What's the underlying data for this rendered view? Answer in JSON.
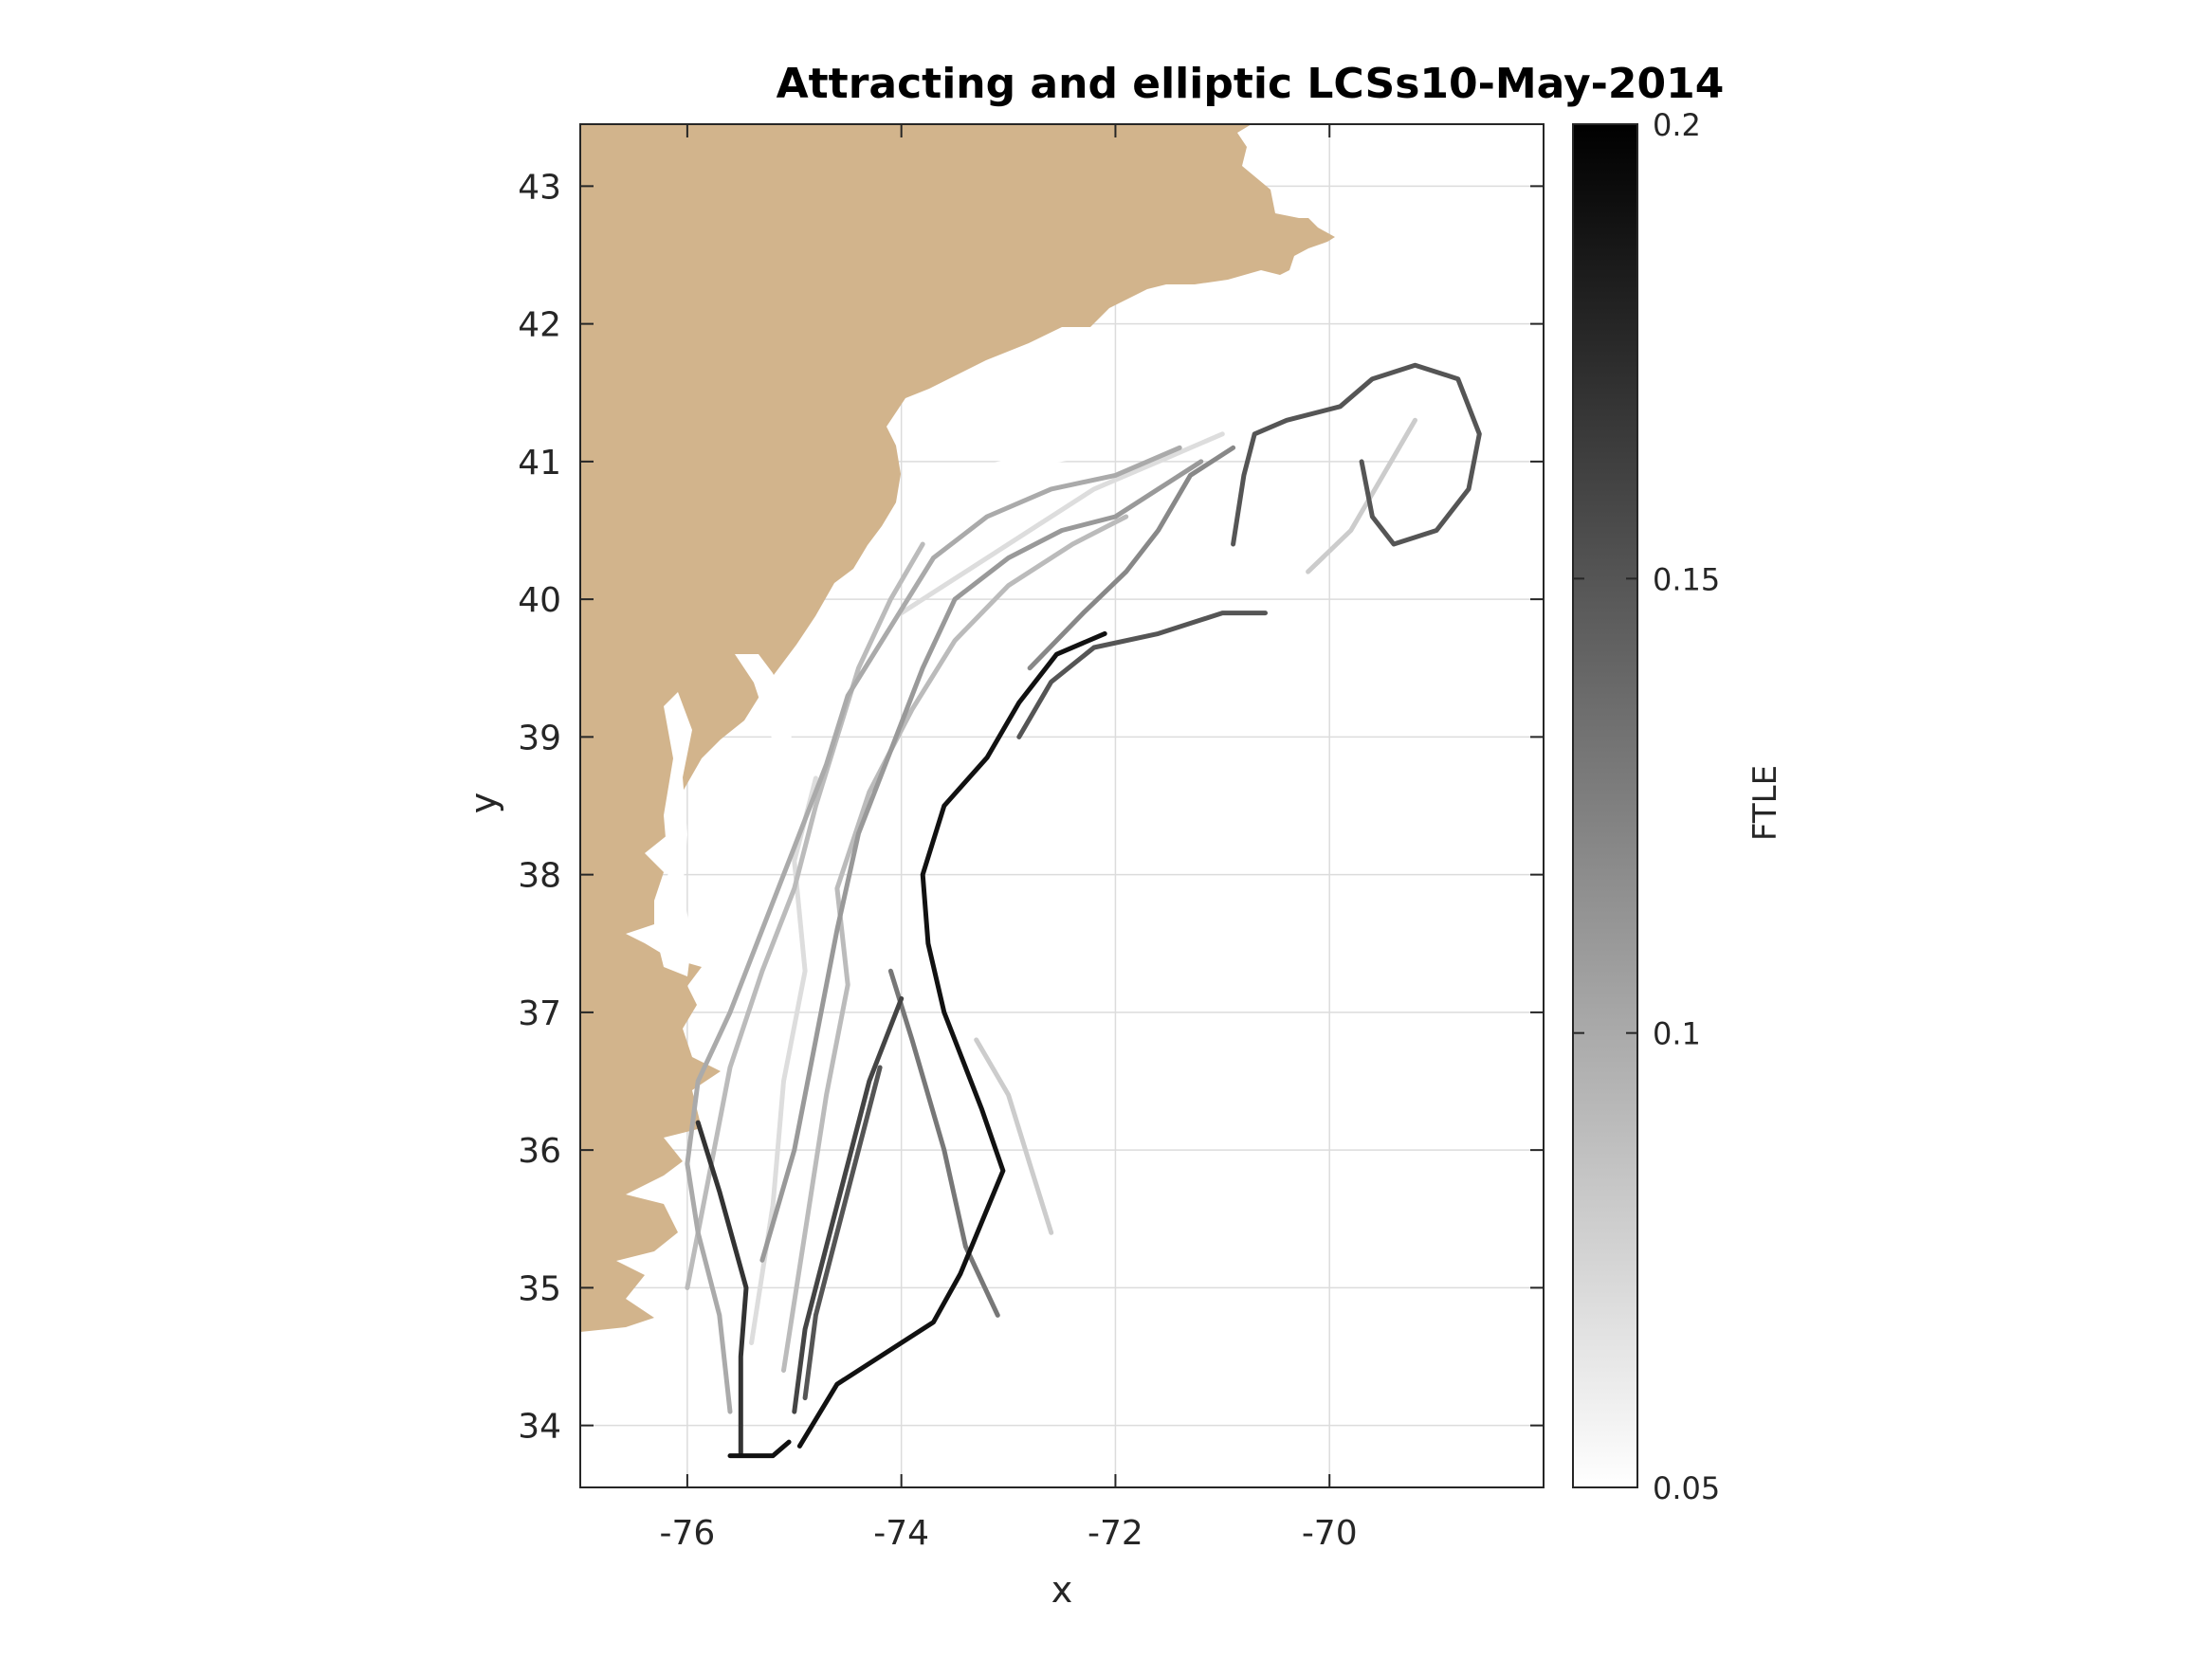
{
  "chart_data": {
    "type": "map",
    "title": "Attracting and elliptic LCSs10-May-2014",
    "xlabel": "x",
    "ylabel": "y",
    "xlim": [
      -77,
      -68
    ],
    "ylim": [
      33.55,
      43.45
    ],
    "x_ticks": [
      "-76",
      "-74",
      "-72",
      "-70"
    ],
    "x_tick_values": [
      -76,
      -74,
      -72,
      -70
    ],
    "y_ticks": [
      "34",
      "35",
      "36",
      "37",
      "38",
      "39",
      "40",
      "41",
      "42",
      "43"
    ],
    "y_tick_values": [
      34,
      35,
      36,
      37,
      38,
      39,
      40,
      41,
      42,
      43
    ],
    "grid": true,
    "land_color": "#D2B48C",
    "colormap": "gray (white to black)",
    "colorbar": {
      "label": "FTLE",
      "range": [
        0.05,
        0.2
      ],
      "ticks": [
        "0.05",
        "0.1",
        "0.15",
        "0.2"
      ],
      "tick_values": [
        0.05,
        0.1,
        0.15,
        0.2
      ]
    },
    "lcs_curves": [
      {
        "ftle": 0.19,
        "points": [
          [
            -74.95,
            33.85
          ],
          [
            -74.6,
            34.3
          ],
          [
            -73.7,
            34.75
          ],
          [
            -73.45,
            35.1
          ],
          [
            -73.05,
            35.85
          ],
          [
            -73.25,
            36.3
          ],
          [
            -73.6,
            37.0
          ],
          [
            -73.75,
            37.5
          ],
          [
            -73.8,
            38.0
          ],
          [
            -73.6,
            38.5
          ],
          [
            -73.2,
            38.85
          ],
          [
            -72.9,
            39.25
          ],
          [
            -72.55,
            39.6
          ],
          [
            -72.1,
            39.75
          ]
        ]
      },
      {
        "ftle": 0.19,
        "points": [
          [
            -75.6,
            33.78
          ],
          [
            -75.2,
            33.78
          ],
          [
            -75.05,
            33.88
          ]
        ]
      },
      {
        "ftle": 0.17,
        "points": [
          [
            -75.5,
            33.8
          ],
          [
            -75.5,
            34.5
          ],
          [
            -75.45,
            35.0
          ],
          [
            -75.7,
            35.7
          ],
          [
            -75.9,
            36.2
          ]
        ]
      },
      {
        "ftle": 0.16,
        "points": [
          [
            -75.0,
            34.1
          ],
          [
            -74.9,
            34.7
          ],
          [
            -74.7,
            35.3
          ],
          [
            -74.5,
            35.9
          ],
          [
            -74.3,
            36.5
          ],
          [
            -74.0,
            37.1
          ]
        ]
      },
      {
        "ftle": 0.15,
        "points": [
          [
            -74.9,
            34.2
          ],
          [
            -74.8,
            34.8
          ],
          [
            -74.6,
            35.4
          ],
          [
            -74.4,
            36.0
          ],
          [
            -74.2,
            36.6
          ]
        ]
      },
      {
        "ftle": 0.15,
        "points": [
          [
            -72.9,
            39.0
          ],
          [
            -72.6,
            39.4
          ],
          [
            -72.2,
            39.65
          ],
          [
            -71.6,
            39.75
          ],
          [
            -71.0,
            39.9
          ],
          [
            -70.6,
            39.9
          ]
        ]
      },
      {
        "ftle": 0.15,
        "points": [
          [
            -70.9,
            40.4
          ],
          [
            -70.8,
            40.9
          ],
          [
            -70.7,
            41.2
          ],
          [
            -70.4,
            41.3
          ],
          [
            -69.9,
            41.4
          ],
          [
            -69.6,
            41.6
          ],
          [
            -69.2,
            41.7
          ],
          [
            -68.8,
            41.6
          ],
          [
            -68.6,
            41.2
          ],
          [
            -68.7,
            40.8
          ],
          [
            -69.0,
            40.5
          ],
          [
            -69.4,
            40.4
          ],
          [
            -69.6,
            40.6
          ],
          [
            -69.7,
            41.0
          ]
        ]
      },
      {
        "ftle": 0.13,
        "points": [
          [
            -73.1,
            34.8
          ],
          [
            -73.4,
            35.3
          ],
          [
            -73.6,
            36.0
          ],
          [
            -73.9,
            36.8
          ],
          [
            -74.1,
            37.3
          ]
        ]
      },
      {
        "ftle": 0.12,
        "points": [
          [
            -72.8,
            39.5
          ],
          [
            -72.3,
            39.9
          ],
          [
            -71.9,
            40.2
          ],
          [
            -71.6,
            40.5
          ],
          [
            -71.3,
            40.9
          ],
          [
            -70.9,
            41.1
          ]
        ]
      },
      {
        "ftle": 0.11,
        "points": [
          [
            -75.3,
            35.2
          ],
          [
            -75.0,
            36.0
          ],
          [
            -74.8,
            36.8
          ],
          [
            -74.6,
            37.6
          ],
          [
            -74.4,
            38.3
          ],
          [
            -74.1,
            38.9
          ],
          [
            -73.8,
            39.5
          ],
          [
            -73.5,
            40.0
          ],
          [
            -73.0,
            40.3
          ],
          [
            -72.5,
            40.5
          ],
          [
            -72.0,
            40.6
          ],
          [
            -71.6,
            40.8
          ],
          [
            -71.2,
            41.0
          ]
        ]
      },
      {
        "ftle": 0.1,
        "points": [
          [
            -75.6,
            34.1
          ],
          [
            -75.7,
            34.8
          ],
          [
            -75.9,
            35.4
          ],
          [
            -76.0,
            35.9
          ],
          [
            -75.9,
            36.5
          ],
          [
            -75.6,
            37.0
          ],
          [
            -75.3,
            37.6
          ],
          [
            -75.0,
            38.2
          ],
          [
            -74.7,
            38.8
          ],
          [
            -74.5,
            39.3
          ],
          [
            -74.1,
            39.8
          ],
          [
            -73.7,
            40.3
          ],
          [
            -73.2,
            40.6
          ],
          [
            -72.6,
            40.8
          ],
          [
            -72.0,
            40.9
          ],
          [
            -71.4,
            41.1
          ]
        ]
      },
      {
        "ftle": 0.09,
        "points": [
          [
            -75.1,
            34.4
          ],
          [
            -74.9,
            35.4
          ],
          [
            -74.7,
            36.4
          ],
          [
            -74.5,
            37.2
          ],
          [
            -74.6,
            37.9
          ],
          [
            -74.3,
            38.6
          ],
          [
            -73.9,
            39.2
          ],
          [
            -73.5,
            39.7
          ],
          [
            -73.0,
            40.1
          ],
          [
            -72.4,
            40.4
          ],
          [
            -71.9,
            40.6
          ]
        ]
      },
      {
        "ftle": 0.09,
        "points": [
          [
            -76.0,
            35.0
          ],
          [
            -75.8,
            35.8
          ],
          [
            -75.6,
            36.6
          ],
          [
            -75.3,
            37.3
          ],
          [
            -75.0,
            37.9
          ],
          [
            -74.8,
            38.5
          ],
          [
            -74.6,
            39.0
          ],
          [
            -74.4,
            39.5
          ],
          [
            -74.1,
            40.0
          ],
          [
            -73.8,
            40.4
          ]
        ]
      },
      {
        "ftle": 0.08,
        "points": [
          [
            -72.6,
            35.4
          ],
          [
            -72.8,
            35.9
          ],
          [
            -73.0,
            36.4
          ],
          [
            -73.3,
            36.8
          ]
        ]
      },
      {
        "ftle": 0.08,
        "points": [
          [
            -70.2,
            40.2
          ],
          [
            -69.8,
            40.5
          ],
          [
            -69.5,
            40.9
          ],
          [
            -69.2,
            41.3
          ]
        ]
      },
      {
        "ftle": 0.07,
        "points": [
          [
            -75.4,
            34.6
          ],
          [
            -75.2,
            35.6
          ],
          [
            -75.1,
            36.5
          ],
          [
            -74.9,
            37.3
          ],
          [
            -75.0,
            38.1
          ],
          [
            -74.8,
            38.7
          ]
        ]
      },
      {
        "ftle": 0.07,
        "points": [
          [
            -74.0,
            39.9
          ],
          [
            -73.4,
            40.2
          ],
          [
            -72.8,
            40.5
          ],
          [
            -72.2,
            40.8
          ],
          [
            -71.6,
            41.0
          ],
          [
            -71.0,
            41.2
          ]
        ]
      }
    ]
  }
}
